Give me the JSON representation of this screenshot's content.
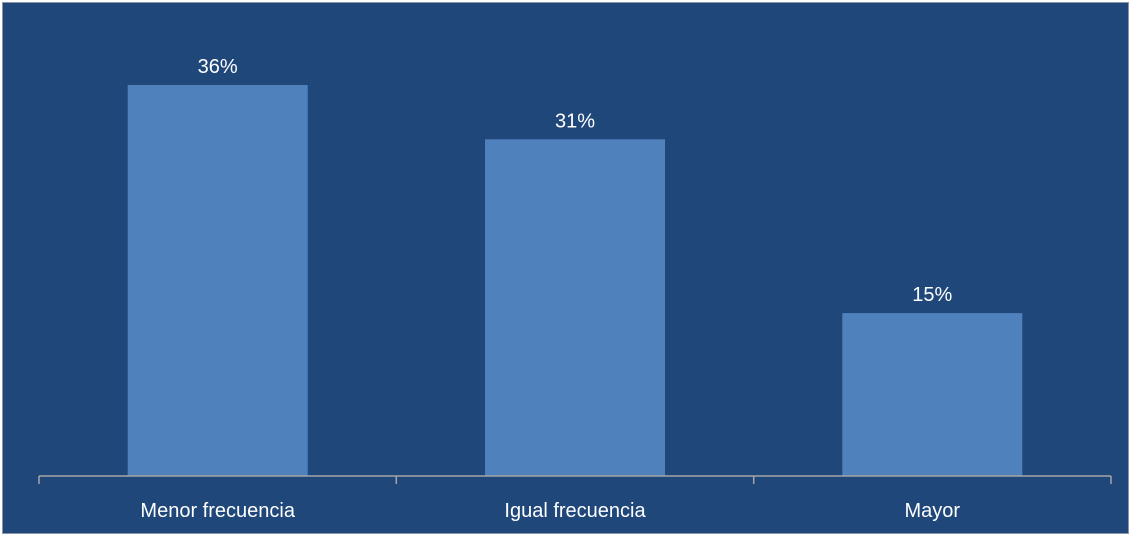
{
  "chart_data": {
    "type": "bar",
    "categories": [
      "Menor frecuencia",
      "Igual frecuencia",
      "Mayor"
    ],
    "values": [
      36,
      31,
      15
    ],
    "data_labels": [
      "36%",
      "31%",
      "15%"
    ],
    "ylim": [
      0,
      40
    ],
    "grid": false,
    "legend": "none",
    "colors": {
      "background": "#1f477a",
      "bar": "#4f81bd",
      "axis": "#a6a6a6",
      "text": "#ffffff"
    }
  }
}
